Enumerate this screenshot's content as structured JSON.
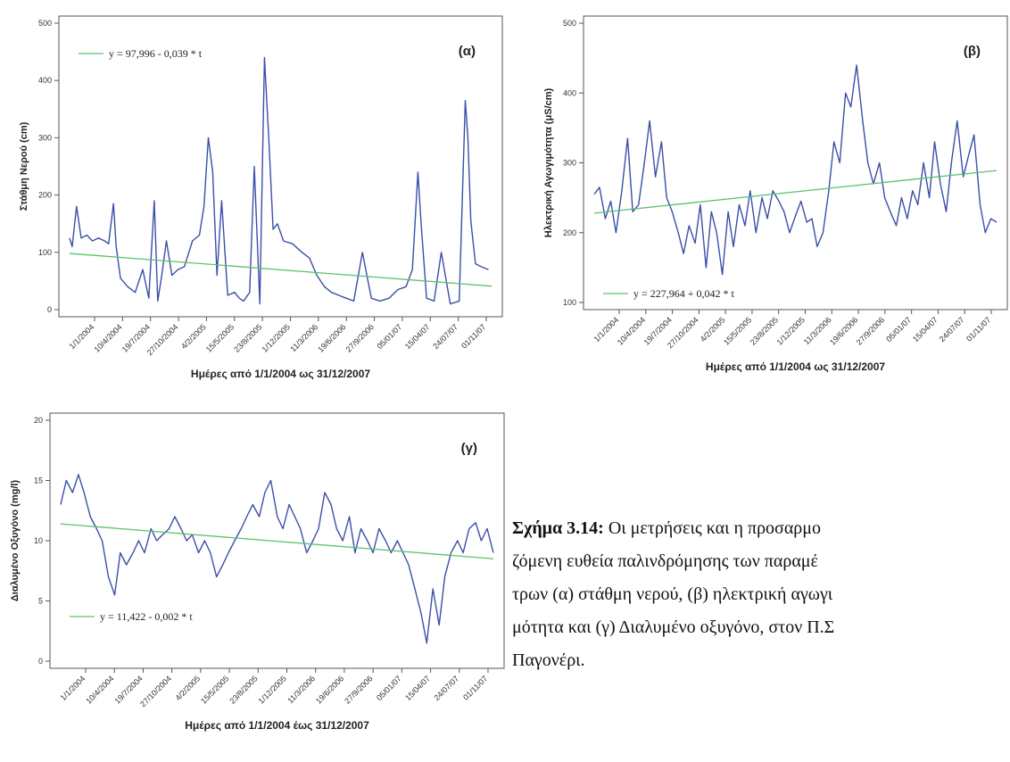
{
  "chart_data": [
    {
      "type": "line",
      "panel_label": "(α)",
      "ylabel": "Στάθμη Νερού (cm)",
      "xlabel": "Ημέρες από 1/1/2004 ως 31/12/2007",
      "yticks": [
        "0",
        "100",
        "200",
        "300",
        "400",
        "500"
      ],
      "ylim": [
        0,
        500
      ],
      "xlim": [
        "2004-01-01",
        "2007-12-31"
      ],
      "xticks": [
        "1/1/2004",
        "10/4/2004",
        "19/7/2004",
        "27/10/2004",
        "4/2/2005",
        "15/5/2005",
        "23/8/2005",
        "1/12/2005",
        "11/3/2006",
        "19/6/2006",
        "27/9/2006",
        "05/01/07",
        "15/04/07",
        "24/07/07",
        "01/11/07"
      ],
      "regression_label": "y = 97,996 - 0,039 * t",
      "regression": {
        "start": 98,
        "end": 41
      },
      "series_color": "#3a4fa8",
      "regression_color": "#5cc26a",
      "series": [
        {
          "x": [
            "2004-01-01",
            "2004-01-10",
            "2004-01-25",
            "2004-02-10",
            "2004-03-01",
            "2004-03-20",
            "2004-04-10",
            "2004-05-01",
            "2004-05-15",
            "2004-06-01",
            "2004-06-10",
            "2004-06-25",
            "2004-07-20",
            "2004-08-15",
            "2004-09-10",
            "2004-10-01",
            "2004-10-20",
            "2004-11-01",
            "2004-11-15",
            "2004-12-01",
            "2004-12-20",
            "2005-01-10",
            "2005-02-01",
            "2005-03-01",
            "2005-03-25",
            "2005-04-10",
            "2005-04-25",
            "2005-05-10",
            "2005-05-25",
            "2005-06-10",
            "2005-07-01",
            "2005-07-25",
            "2005-08-10",
            "2005-08-25",
            "2005-09-15",
            "2005-10-01",
            "2005-10-20",
            "2005-11-05",
            "2005-11-20",
            "2005-12-05",
            "2005-12-20",
            "2006-01-10",
            "2006-02-10",
            "2006-03-15",
            "2006-04-10",
            "2006-05-05",
            "2006-06-01",
            "2006-06-25",
            "2006-07-20",
            "2006-08-15",
            "2006-09-10",
            "2006-10-10",
            "2006-11-10",
            "2006-12-10",
            "2007-01-10",
            "2007-02-10",
            "2007-03-10",
            "2007-04-01",
            "2007-04-20",
            "2007-05-01",
            "2007-05-20",
            "2007-06-15",
            "2007-07-10",
            "2007-08-10",
            "2007-09-10",
            "2007-10-01",
            "2007-10-10",
            "2007-10-20",
            "2007-11-05",
            "2007-11-25",
            "2007-12-20"
          ],
          "y": [
            125,
            110,
            180,
            125,
            130,
            120,
            125,
            120,
            115,
            185,
            110,
            55,
            40,
            30,
            70,
            20,
            190,
            15,
            60,
            120,
            60,
            70,
            75,
            120,
            130,
            180,
            300,
            240,
            60,
            190,
            25,
            30,
            20,
            15,
            30,
            250,
            10,
            440,
            300,
            140,
            150,
            120,
            115,
            100,
            90,
            60,
            40,
            30,
            25,
            20,
            15,
            100,
            20,
            15,
            20,
            35,
            40,
            70,
            240,
            150,
            20,
            15,
            100,
            10,
            15,
            365,
            300,
            155,
            80,
            75,
            70
          ]
        }
      ]
    },
    {
      "type": "line",
      "panel_label": "(β)",
      "ylabel": "Ηλεκτρική Αγωγιμότητα (μS/cm)",
      "xlabel": "Ημέρες από 1/1/2004 ως 31/12/2007",
      "yticks": [
        "100",
        "200",
        "300",
        "400",
        "500"
      ],
      "ylim": [
        100,
        500
      ],
      "xlim": [
        "2004-01-01",
        "2007-12-31"
      ],
      "xticks": [
        "1/1/2004",
        "10/4/2004",
        "19/7/2004",
        "27/10/2004",
        "4/2/2005",
        "15/5/2005",
        "23/8/2005",
        "1/12/2005",
        "11/3/2006",
        "19/6/2006",
        "27/9/2006",
        "05/01/07",
        "15/04/07",
        "24/07/07",
        "01/11/07"
      ],
      "regression_label": "y = 227,964 + 0,042 * t",
      "regression": {
        "start": 228,
        "end": 289
      },
      "series_color": "#3a4fa8",
      "regression_color": "#5cc26a",
      "series": [
        {
          "x": [
            "2004-01-01",
            "2004-01-20",
            "2004-02-10",
            "2004-03-01",
            "2004-03-20",
            "2004-04-10",
            "2004-05-01",
            "2004-05-20",
            "2004-06-10",
            "2004-07-01",
            "2004-07-20",
            "2004-08-10",
            "2004-09-01",
            "2004-09-20",
            "2004-10-10",
            "2004-11-01",
            "2004-11-20",
            "2004-12-10",
            "2005-01-01",
            "2005-01-20",
            "2005-02-10",
            "2005-03-01",
            "2005-03-20",
            "2005-04-10",
            "2005-05-01",
            "2005-05-20",
            "2005-06-10",
            "2005-07-01",
            "2005-07-20",
            "2005-08-10",
            "2005-09-01",
            "2005-09-20",
            "2005-10-10",
            "2005-11-01",
            "2005-11-20",
            "2005-12-10",
            "2006-01-01",
            "2006-01-20",
            "2006-02-10",
            "2006-03-01",
            "2006-03-20",
            "2006-04-10",
            "2006-05-01",
            "2006-05-20",
            "2006-06-10",
            "2006-07-01",
            "2006-07-20",
            "2006-08-10",
            "2006-09-01",
            "2006-09-20",
            "2006-10-10",
            "2006-11-01",
            "2006-11-20",
            "2006-12-10",
            "2007-01-01",
            "2007-01-20",
            "2007-02-10",
            "2007-03-01",
            "2007-03-20",
            "2007-04-10",
            "2007-05-01",
            "2007-05-20",
            "2007-06-10",
            "2007-07-01",
            "2007-07-20",
            "2007-08-10",
            "2007-09-01",
            "2007-09-20",
            "2007-10-10",
            "2007-11-01",
            "2007-11-20",
            "2007-12-10",
            "2007-12-31"
          ],
          "y": [
            255,
            265,
            220,
            245,
            200,
            260,
            335,
            230,
            240,
            300,
            360,
            280,
            330,
            250,
            230,
            200,
            170,
            210,
            185,
            240,
            150,
            230,
            200,
            140,
            230,
            180,
            240,
            210,
            260,
            200,
            250,
            220,
            260,
            245,
            230,
            200,
            225,
            245,
            215,
            220,
            180,
            200,
            260,
            330,
            300,
            400,
            380,
            440,
            360,
            300,
            270,
            300,
            250,
            230,
            210,
            250,
            220,
            260,
            240,
            300,
            250,
            330,
            270,
            230,
            300,
            360,
            280,
            310,
            340,
            240,
            200,
            220,
            215
          ]
        }
      ]
    },
    {
      "type": "line",
      "panel_label": "(γ)",
      "ylabel": "Διαλυμένο Οξυγόνο (mg/l)",
      "xlabel": "Ημέρες από 1/1/2004 έως 31/12/2007",
      "yticks": [
        "0",
        "5",
        "10",
        "15",
        "20"
      ],
      "ylim": [
        0,
        20
      ],
      "xlim": [
        "2004-01-01",
        "2007-12-31"
      ],
      "xticks": [
        "1/1/2004",
        "10/4/2004",
        "19/7/2004",
        "27/10/2004",
        "4/2/2005",
        "15/5/2005",
        "23/8/2005",
        "1/12/2005",
        "11/3/2006",
        "19/6/2006",
        "27/9/2006",
        "05/01/07",
        "15/04/07",
        "24/07/07",
        "01/11/07"
      ],
      "regression_label": "y = 11,422 - 0,002 * t",
      "regression": {
        "start": 11.4,
        "end": 8.5
      },
      "series_color": "#3a4fa8",
      "regression_color": "#5cc26a",
      "series": [
        {
          "x": [
            "2004-01-01",
            "2004-01-20",
            "2004-02-10",
            "2004-03-01",
            "2004-03-20",
            "2004-04-10",
            "2004-05-01",
            "2004-05-20",
            "2004-06-10",
            "2004-07-01",
            "2004-07-20",
            "2004-08-10",
            "2004-09-01",
            "2004-09-20",
            "2004-10-10",
            "2004-11-01",
            "2004-11-20",
            "2004-12-10",
            "2005-01-01",
            "2005-01-20",
            "2005-02-10",
            "2005-03-01",
            "2005-03-20",
            "2005-04-10",
            "2005-05-01",
            "2005-05-20",
            "2005-06-10",
            "2005-07-01",
            "2005-07-20",
            "2005-08-10",
            "2005-09-01",
            "2005-09-20",
            "2005-10-10",
            "2005-11-01",
            "2005-11-20",
            "2005-12-10",
            "2006-01-01",
            "2006-01-20",
            "2006-02-10",
            "2006-03-01",
            "2006-03-20",
            "2006-04-10",
            "2006-05-01",
            "2006-05-20",
            "2006-06-10",
            "2006-07-01",
            "2006-07-20",
            "2006-08-10",
            "2006-09-01",
            "2006-09-20",
            "2006-10-10",
            "2006-11-01",
            "2006-11-20",
            "2006-12-10",
            "2007-01-01",
            "2007-01-20",
            "2007-02-10",
            "2007-03-01",
            "2007-03-20",
            "2007-04-10",
            "2007-05-01",
            "2007-05-20",
            "2007-06-10",
            "2007-07-01",
            "2007-07-20",
            "2007-08-10",
            "2007-09-01",
            "2007-09-20",
            "2007-10-10",
            "2007-11-01",
            "2007-11-20",
            "2007-12-10",
            "2007-12-31"
          ],
          "y": [
            13,
            15,
            14,
            15.5,
            14,
            12,
            11,
            10,
            7,
            5.5,
            9,
            8,
            9,
            10,
            9,
            11,
            10,
            10.5,
            11,
            12,
            11,
            10,
            10.5,
            9,
            10,
            9,
            7,
            8,
            9,
            10,
            11,
            12,
            13,
            12,
            14,
            15,
            12,
            11,
            13,
            12,
            11,
            9,
            10,
            11,
            14,
            13,
            11,
            10,
            12,
            9,
            11,
            10,
            9,
            11,
            10,
            9,
            10,
            9,
            8,
            6,
            4,
            1.5,
            6,
            3,
            7,
            9,
            10,
            9,
            11,
            11.5,
            10,
            11,
            9
          ]
        }
      ]
    }
  ],
  "caption": {
    "lead": "Σχήμα 3.14:",
    "line1": " Οι μετρήσεις και η προσαρμο",
    "line2": "ζόμενη ευθεία παλινδρόμησης των παραμέ",
    "line3": "τρων (α) στάθμη νερού, (β) ηλεκτρική αγωγι",
    "line4": "μότητα και (γ) Διαλυμένο οξυγόνο, στον Π.Σ",
    "line5": "Παγονέρι."
  }
}
